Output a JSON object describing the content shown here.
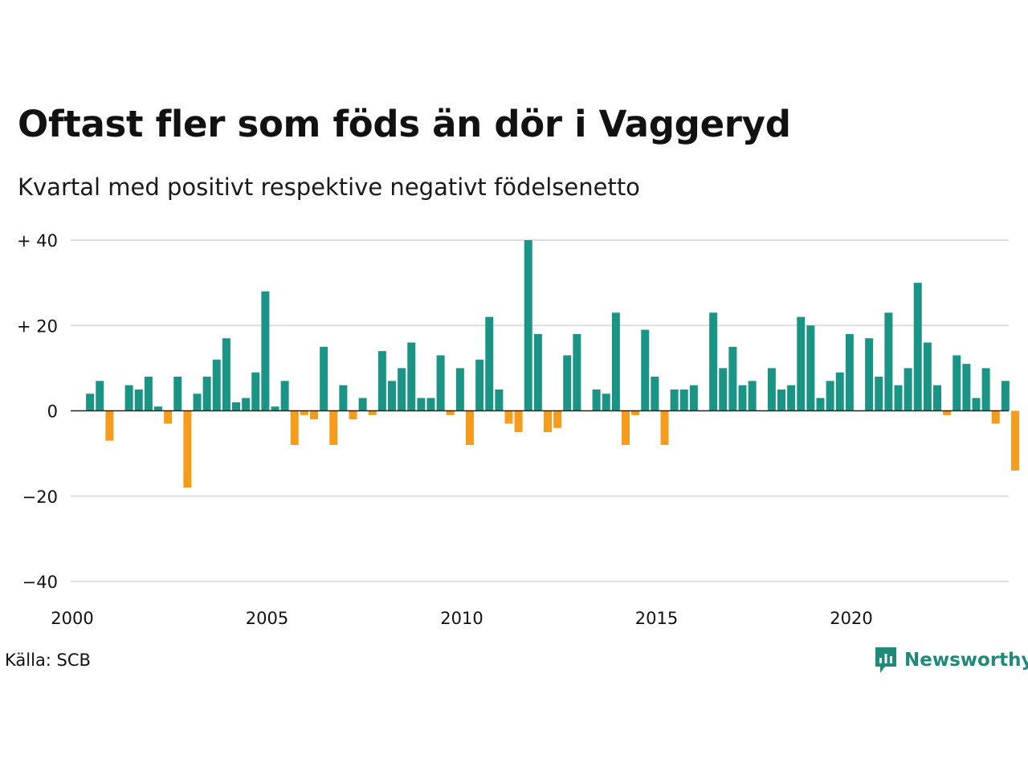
{
  "title": "Oftast fler som föds än dör i Vaggeryd",
  "subtitle": "Kvartal med positivt respektive negativt födelsenetto",
  "source": "Källa: SCB",
  "brand": {
    "name": "Newsworthy",
    "icon": "newsworthy-logo-icon",
    "color": "#1f8a7a"
  },
  "colors": {
    "positive": "#1a9585",
    "negative": "#f59c1c",
    "grid": "#dddddd",
    "zero_line": "#222222"
  },
  "chart_data": {
    "type": "bar",
    "title": "Oftast fler som föds än dör i Vaggeryd",
    "subtitle": "Kvartal med positivt respektive negativt födelsenetto",
    "xlabel": "",
    "ylabel": "",
    "ylim": [
      -40,
      40
    ],
    "xlim": [
      2000,
      2024
    ],
    "grid": true,
    "y_ticks": [
      {
        "value": 40,
        "label": "+ 40"
      },
      {
        "value": 20,
        "label": "+ 20"
      },
      {
        "value": 0,
        "label": "0"
      },
      {
        "value": -20,
        "label": "−20"
      },
      {
        "value": -40,
        "label": "−40"
      }
    ],
    "x_ticks": [
      {
        "value": 2000,
        "label": "2000"
      },
      {
        "value": 2005,
        "label": "2005"
      },
      {
        "value": 2010,
        "label": "2010"
      },
      {
        "value": 2015,
        "label": "2015"
      },
      {
        "value": 2020,
        "label": "2020"
      }
    ],
    "series": [
      {
        "start_year": 2000,
        "start_quarter": 1,
        "values": [
          0,
          4,
          7,
          -7,
          0,
          6,
          5,
          8,
          1,
          -3,
          8,
          -18,
          4,
          8,
          12,
          17,
          2,
          3,
          9,
          28,
          1,
          7,
          -8,
          -1,
          -2,
          15,
          -8,
          6,
          -2,
          3,
          -1,
          14,
          7,
          10,
          16,
          3,
          3,
          13,
          -1,
          10,
          -8,
          12,
          22,
          5,
          -3,
          -5,
          40,
          18,
          -5,
          -4,
          13,
          18,
          0,
          5,
          4,
          23,
          -8,
          -1,
          19,
          8,
          -8,
          5,
          5,
          6,
          0,
          23,
          10,
          15,
          6,
          7,
          0,
          10,
          5,
          6,
          22,
          20,
          3,
          7,
          9,
          18,
          0,
          17,
          8,
          23,
          6,
          10,
          30,
          16,
          6,
          -1,
          13,
          11,
          3,
          10,
          -3,
          7,
          -14
        ]
      }
    ]
  }
}
